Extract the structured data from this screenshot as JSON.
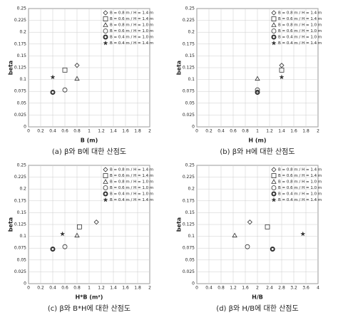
{
  "chart_data": [
    {
      "type": "scatter",
      "caption": "(a) β와 B에 대한 산점도",
      "xlabel": "B (m)",
      "ylabel": "beta",
      "xlim": [
        0,
        2
      ],
      "xticks": [
        0,
        0.2,
        0.4,
        0.6,
        0.8,
        1,
        1.2,
        1.4,
        1.6,
        1.8,
        2
      ],
      "ylim": [
        0,
        0.25
      ],
      "yticks": [
        0,
        0.025,
        0.05,
        0.075,
        0.1,
        0.125,
        0.15,
        0.175,
        0.2,
        0.225,
        0.25
      ],
      "grid": true,
      "legend": "upper right",
      "series": [
        {
          "name": "B = 0.8 m / H = 1.4 m",
          "marker": "diamond",
          "color": "#333333",
          "x": [
            0.8
          ],
          "values": [
            0.13
          ]
        },
        {
          "name": "B = 0.6 m / H = 1.4 m",
          "marker": "square",
          "color": "#333333",
          "x": [
            0.6
          ],
          "values": [
            0.12
          ]
        },
        {
          "name": "B = 0.8 m / H = 1.0 m",
          "marker": "triangle",
          "color": "#333333",
          "x": [
            0.8
          ],
          "values": [
            0.102
          ]
        },
        {
          "name": "B = 0.6 m / H = 1.0 m",
          "marker": "circle",
          "color": "#333333",
          "x": [
            0.6
          ],
          "values": [
            0.078
          ]
        },
        {
          "name": "B = 0.4 m / H = 1.0 m",
          "marker": "bold",
          "color": "#333333",
          "x": [
            0.4
          ],
          "values": [
            0.073
          ]
        },
        {
          "name": "B = 0.4 m / H = 1.4 m",
          "marker": "star",
          "color": "#333333",
          "x": [
            0.4
          ],
          "values": [
            0.105
          ]
        }
      ]
    },
    {
      "type": "scatter",
      "caption": "(b) β와 H에 대한 산점도",
      "xlabel": "H (m)",
      "ylabel": "beta",
      "xlim": [
        0,
        2
      ],
      "xticks": [
        0,
        0.2,
        0.4,
        0.6,
        0.8,
        1,
        1.2,
        1.4,
        1.6,
        1.8,
        2
      ],
      "ylim": [
        0,
        0.25
      ],
      "yticks": [
        0,
        0.025,
        0.05,
        0.075,
        0.1,
        0.125,
        0.15,
        0.175,
        0.2,
        0.225,
        0.25
      ],
      "grid": true,
      "legend": "upper right",
      "series": [
        {
          "name": "B = 0.8 m / H = 1.4 m",
          "marker": "diamond",
          "color": "#333333",
          "x": [
            1.4
          ],
          "values": [
            0.13
          ]
        },
        {
          "name": "B = 0.6 m / H = 1.4 m",
          "marker": "square",
          "color": "#333333",
          "x": [
            1.4
          ],
          "values": [
            0.12
          ]
        },
        {
          "name": "B = 0.8 m / H = 1.0 m",
          "marker": "triangle",
          "color": "#333333",
          "x": [
            1
          ],
          "values": [
            0.102
          ]
        },
        {
          "name": "B = 0.6 m / H = 1.0 m",
          "marker": "circle",
          "color": "#333333",
          "x": [
            1
          ],
          "values": [
            0.078
          ]
        },
        {
          "name": "B = 0.4 m / H = 1.0 m",
          "marker": "bold",
          "color": "#333333",
          "x": [
            1
          ],
          "values": [
            0.073
          ]
        },
        {
          "name": "B = 0.4 m / H = 1.4 m",
          "marker": "star",
          "color": "#333333",
          "x": [
            1.4
          ],
          "values": [
            0.105
          ]
        }
      ]
    },
    {
      "type": "scatter",
      "caption": "(c) β와 B*H에 대한 산점도",
      "xlabel": "H*B (m²)",
      "ylabel": "beta",
      "xlim": [
        0,
        2
      ],
      "xticks": [
        0,
        0.2,
        0.4,
        0.6,
        0.8,
        1,
        1.2,
        1.4,
        1.6,
        1.8,
        2
      ],
      "ylim": [
        0,
        0.25
      ],
      "yticks": [
        0,
        0.025,
        0.05,
        0.075,
        0.1,
        0.125,
        0.15,
        0.175,
        0.2,
        0.225,
        0.25
      ],
      "grid": true,
      "legend": "upper right",
      "series": [
        {
          "name": "B = 0.8 m / H = 1.4 m",
          "marker": "diamond",
          "color": "#333333",
          "x": [
            1.12
          ],
          "values": [
            0.13
          ]
        },
        {
          "name": "B = 0.6 m / H = 1.4 m",
          "marker": "square",
          "color": "#333333",
          "x": [
            0.84
          ],
          "values": [
            0.12
          ]
        },
        {
          "name": "B = 0.8 m / H = 1.0 m",
          "marker": "triangle",
          "color": "#333333",
          "x": [
            0.8
          ],
          "values": [
            0.102
          ]
        },
        {
          "name": "B = 0.6 m / H = 1.0 m",
          "marker": "circle",
          "color": "#333333",
          "x": [
            0.6
          ],
          "values": [
            0.078
          ]
        },
        {
          "name": "B = 0.4 m / H = 1.0 m",
          "marker": "bold",
          "color": "#333333",
          "x": [
            0.4
          ],
          "values": [
            0.073
          ]
        },
        {
          "name": "B = 0.4 m / H = 1.4 m",
          "marker": "star",
          "color": "#333333",
          "x": [
            0.56
          ],
          "values": [
            0.105
          ]
        }
      ]
    },
    {
      "type": "scatter",
      "caption": "(d) β와 H/B에 대한 산점도",
      "xlabel": "H/B",
      "ylabel": "beta",
      "xlim": [
        0,
        4
      ],
      "xticks": [
        0,
        0.4,
        0.8,
        1.2,
        1.6,
        2,
        2.4,
        2.8,
        3.2,
        3.6,
        4
      ],
      "ylim": [
        0,
        0.25
      ],
      "yticks": [
        0,
        0.025,
        0.05,
        0.075,
        0.1,
        0.125,
        0.15,
        0.175,
        0.2,
        0.225,
        0.25
      ],
      "grid": true,
      "legend": "upper right",
      "series": [
        {
          "name": "B = 0.8 m / H = 1.4 m",
          "marker": "diamond",
          "color": "#333333",
          "x": [
            1.75
          ],
          "values": [
            0.13
          ]
        },
        {
          "name": "B = 0.6 m / H = 1.4 m",
          "marker": "square",
          "color": "#333333",
          "x": [
            2.33
          ],
          "values": [
            0.12
          ]
        },
        {
          "name": "B = 0.8 m / H = 1.0 m",
          "marker": "triangle",
          "color": "#333333",
          "x": [
            1.25
          ],
          "values": [
            0.102
          ]
        },
        {
          "name": "B = 0.6 m / H = 1.0 m",
          "marker": "circle",
          "color": "#333333",
          "x": [
            1.67
          ],
          "values": [
            0.078
          ]
        },
        {
          "name": "B = 0.4 m / H = 1.0 m",
          "marker": "bold",
          "color": "#333333",
          "x": [
            2.5
          ],
          "values": [
            0.073
          ]
        },
        {
          "name": "B = 0.4 m / H = 1.4 m",
          "marker": "star",
          "color": "#333333",
          "x": [
            3.5
          ],
          "values": [
            0.105
          ]
        }
      ]
    }
  ]
}
